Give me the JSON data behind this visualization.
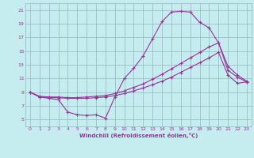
{
  "xlabel": "Windchill (Refroidissement éolien,°C)",
  "xlim": [
    -0.5,
    23.5
  ],
  "ylim": [
    4,
    22
  ],
  "xticks": [
    0,
    1,
    2,
    3,
    4,
    5,
    6,
    7,
    8,
    9,
    10,
    11,
    12,
    13,
    14,
    15,
    16,
    17,
    18,
    19,
    20,
    21,
    22,
    23
  ],
  "yticks": [
    5,
    7,
    9,
    11,
    13,
    15,
    17,
    19,
    21
  ],
  "background_color": "#c5ecee",
  "grid_color": "#9dbfc8",
  "line_color": "#993399",
  "line1_x": [
    0,
    1,
    2,
    3,
    4,
    5,
    6,
    7,
    8,
    9,
    10,
    11,
    12,
    13,
    14,
    15,
    16,
    17,
    18,
    19,
    20,
    21,
    22,
    23
  ],
  "line1_y": [
    9.0,
    8.3,
    8.1,
    7.9,
    6.1,
    5.7,
    5.6,
    5.7,
    5.2,
    8.3,
    11.0,
    12.5,
    14.3,
    16.8,
    19.3,
    20.7,
    20.8,
    20.7,
    19.2,
    18.4,
    16.2,
    12.2,
    11.2,
    10.5
  ],
  "line2_x": [
    0,
    1,
    2,
    3,
    4,
    5,
    6,
    7,
    8,
    9,
    10,
    11,
    12,
    13,
    14,
    15,
    16,
    17,
    18,
    19,
    20,
    21,
    22,
    23
  ],
  "line2_y": [
    9.0,
    8.3,
    8.2,
    8.2,
    8.1,
    8.1,
    8.1,
    8.2,
    8.3,
    8.5,
    8.8,
    9.2,
    9.6,
    10.1,
    10.6,
    11.2,
    11.9,
    12.6,
    13.3,
    14.0,
    14.8,
    11.5,
    10.3,
    10.5
  ],
  "line3_x": [
    0,
    1,
    2,
    3,
    4,
    5,
    6,
    7,
    8,
    9,
    10,
    11,
    12,
    13,
    14,
    15,
    16,
    17,
    18,
    19,
    20,
    21,
    22,
    23
  ],
  "line3_y": [
    9.0,
    8.4,
    8.3,
    8.3,
    8.2,
    8.2,
    8.3,
    8.4,
    8.5,
    8.8,
    9.2,
    9.7,
    10.2,
    10.9,
    11.6,
    12.4,
    13.2,
    14.0,
    14.8,
    15.6,
    16.2,
    12.8,
    11.5,
    10.6
  ]
}
